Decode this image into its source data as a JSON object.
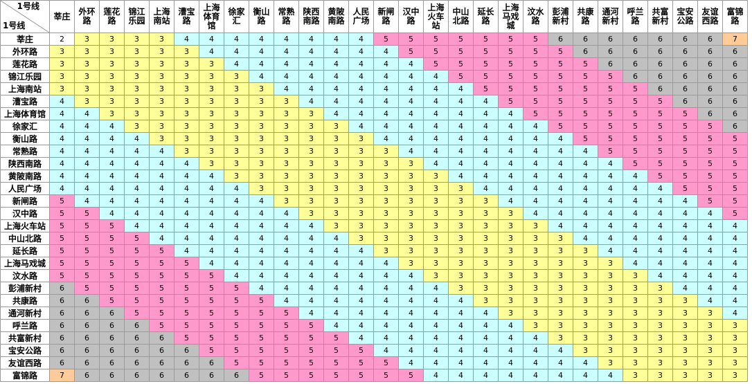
{
  "table": {
    "corner_top": "1号线",
    "corner_bottom": "1号线"
  },
  "colors": {
    "2": "#ffffff",
    "3": "#ffff99",
    "4": "#ccffff",
    "5": "#ff99cc",
    "6": "#c0c0c0",
    "7": "#ffcc99"
  },
  "chart_data": {
    "type": "table",
    "stations": [
      "莘庄",
      "外环路",
      "莲花路",
      "锦江乐园",
      "上海南站",
      "漕宝路",
      "上海体育馆",
      "徐家汇",
      "衡山路",
      "常熟路",
      "陕西南路",
      "黄陂南路",
      "人民广场",
      "新闸路",
      "汉中路",
      "上海火车站",
      "中山北路",
      "延长路",
      "上海马戏城",
      "汶水路",
      "彭浦新村",
      "共康路",
      "通河新村",
      "呼兰路",
      "共富新村",
      "宝安公路",
      "友谊西路",
      "富锦路"
    ],
    "matrix": [
      [
        2,
        3,
        3,
        3,
        3,
        4,
        4,
        4,
        4,
        4,
        4,
        4,
        4,
        5,
        5,
        5,
        5,
        5,
        5,
        5,
        6,
        6,
        6,
        6,
        6,
        6,
        6,
        7
      ],
      [
        3,
        3,
        3,
        3,
        3,
        3,
        4,
        4,
        4,
        4,
        4,
        4,
        4,
        4,
        5,
        5,
        5,
        5,
        5,
        5,
        5,
        6,
        6,
        6,
        6,
        6,
        6,
        6
      ],
      [
        3,
        3,
        3,
        3,
        3,
        3,
        3,
        4,
        4,
        4,
        4,
        4,
        4,
        4,
        4,
        5,
        5,
        5,
        5,
        5,
        5,
        5,
        6,
        6,
        6,
        6,
        6,
        6
      ],
      [
        3,
        3,
        3,
        3,
        3,
        3,
        3,
        3,
        4,
        4,
        4,
        4,
        4,
        4,
        4,
        4,
        5,
        5,
        5,
        5,
        5,
        5,
        5,
        6,
        6,
        6,
        6,
        6
      ],
      [
        3,
        3,
        3,
        3,
        3,
        3,
        3,
        3,
        3,
        4,
        4,
        4,
        4,
        4,
        4,
        4,
        4,
        5,
        5,
        5,
        5,
        5,
        5,
        5,
        6,
        6,
        6,
        6
      ],
      [
        4,
        3,
        3,
        3,
        3,
        3,
        3,
        3,
        3,
        3,
        4,
        4,
        4,
        4,
        4,
        4,
        4,
        4,
        5,
        5,
        5,
        5,
        5,
        5,
        5,
        6,
        6,
        6
      ],
      [
        4,
        4,
        3,
        3,
        3,
        3,
        3,
        3,
        3,
        3,
        3,
        4,
        4,
        4,
        4,
        4,
        4,
        4,
        4,
        5,
        5,
        5,
        5,
        5,
        5,
        5,
        6,
        6
      ],
      [
        4,
        4,
        4,
        3,
        3,
        3,
        3,
        3,
        3,
        3,
        3,
        3,
        4,
        4,
        4,
        4,
        4,
        4,
        4,
        4,
        5,
        5,
        5,
        5,
        5,
        5,
        5,
        6
      ],
      [
        4,
        4,
        4,
        4,
        3,
        3,
        3,
        3,
        3,
        3,
        3,
        3,
        3,
        4,
        4,
        4,
        4,
        4,
        4,
        4,
        4,
        5,
        5,
        5,
        5,
        5,
        5,
        5
      ],
      [
        4,
        4,
        4,
        4,
        4,
        3,
        3,
        3,
        3,
        3,
        3,
        3,
        3,
        3,
        4,
        4,
        4,
        4,
        4,
        4,
        4,
        4,
        5,
        5,
        5,
        5,
        5,
        5
      ],
      [
        4,
        4,
        4,
        4,
        4,
        4,
        3,
        3,
        3,
        3,
        3,
        3,
        3,
        3,
        3,
        4,
        4,
        4,
        4,
        4,
        4,
        4,
        4,
        5,
        5,
        5,
        5,
        5
      ],
      [
        4,
        4,
        4,
        4,
        4,
        4,
        4,
        3,
        3,
        3,
        3,
        3,
        3,
        3,
        3,
        3,
        4,
        4,
        4,
        4,
        4,
        4,
        4,
        4,
        5,
        5,
        5,
        5
      ],
      [
        4,
        4,
        4,
        4,
        4,
        4,
        4,
        4,
        3,
        3,
        3,
        3,
        3,
        3,
        3,
        3,
        3,
        4,
        4,
        4,
        4,
        4,
        4,
        4,
        4,
        5,
        5,
        5
      ],
      [
        5,
        4,
        4,
        4,
        4,
        4,
        4,
        4,
        4,
        3,
        3,
        3,
        3,
        3,
        3,
        3,
        3,
        3,
        4,
        4,
        4,
        4,
        4,
        4,
        4,
        4,
        5,
        5
      ],
      [
        5,
        5,
        4,
        4,
        4,
        4,
        4,
        4,
        4,
        4,
        3,
        3,
        3,
        3,
        3,
        3,
        3,
        3,
        3,
        4,
        4,
        4,
        4,
        4,
        4,
        4,
        4,
        5
      ],
      [
        5,
        5,
        5,
        4,
        4,
        4,
        4,
        4,
        4,
        4,
        4,
        3,
        3,
        3,
        3,
        3,
        3,
        3,
        3,
        3,
        4,
        4,
        4,
        4,
        4,
        4,
        4,
        4
      ],
      [
        5,
        5,
        5,
        5,
        4,
        4,
        4,
        4,
        4,
        4,
        4,
        4,
        3,
        3,
        3,
        3,
        3,
        3,
        3,
        3,
        3,
        4,
        4,
        4,
        4,
        4,
        4,
        4
      ],
      [
        5,
        5,
        5,
        5,
        5,
        4,
        4,
        4,
        4,
        4,
        4,
        4,
        4,
        3,
        3,
        3,
        3,
        3,
        3,
        3,
        3,
        3,
        4,
        4,
        4,
        4,
        4,
        4
      ],
      [
        5,
        5,
        5,
        5,
        5,
        5,
        4,
        4,
        4,
        4,
        4,
        4,
        4,
        4,
        3,
        3,
        3,
        3,
        3,
        3,
        3,
        3,
        3,
        4,
        4,
        4,
        4,
        4
      ],
      [
        5,
        5,
        5,
        5,
        5,
        5,
        5,
        4,
        4,
        4,
        4,
        4,
        4,
        4,
        4,
        3,
        3,
        3,
        3,
        3,
        3,
        3,
        3,
        3,
        4,
        4,
        4,
        4
      ],
      [
        6,
        5,
        5,
        5,
        5,
        5,
        5,
        5,
        4,
        4,
        4,
        4,
        4,
        4,
        4,
        4,
        3,
        3,
        3,
        3,
        3,
        3,
        3,
        3,
        3,
        4,
        4,
        4
      ],
      [
        6,
        6,
        5,
        5,
        5,
        5,
        5,
        5,
        5,
        4,
        4,
        4,
        4,
        4,
        4,
        4,
        4,
        3,
        3,
        3,
        3,
        3,
        3,
        3,
        3,
        3,
        4,
        4
      ],
      [
        6,
        6,
        6,
        5,
        5,
        5,
        5,
        5,
        5,
        5,
        4,
        4,
        4,
        4,
        4,
        4,
        4,
        4,
        3,
        3,
        3,
        3,
        3,
        3,
        3,
        3,
        3,
        4
      ],
      [
        6,
        6,
        6,
        6,
        5,
        5,
        5,
        5,
        5,
        5,
        5,
        4,
        4,
        4,
        4,
        4,
        4,
        4,
        4,
        3,
        3,
        3,
        3,
        3,
        3,
        3,
        3,
        3
      ],
      [
        6,
        6,
        6,
        6,
        6,
        5,
        5,
        5,
        5,
        5,
        5,
        5,
        4,
        4,
        4,
        4,
        4,
        4,
        4,
        4,
        3,
        3,
        3,
        3,
        3,
        3,
        3,
        3
      ],
      [
        6,
        6,
        6,
        6,
        6,
        6,
        5,
        5,
        5,
        5,
        5,
        5,
        5,
        4,
        4,
        4,
        4,
        4,
        4,
        4,
        4,
        3,
        3,
        3,
        3,
        3,
        3,
        3
      ],
      [
        6,
        6,
        6,
        6,
        6,
        6,
        6,
        5,
        5,
        5,
        5,
        5,
        5,
        5,
        4,
        4,
        4,
        4,
        4,
        4,
        4,
        4,
        3,
        3,
        3,
        3,
        3,
        3
      ],
      [
        7,
        6,
        6,
        6,
        6,
        6,
        6,
        6,
        5,
        5,
        5,
        5,
        5,
        5,
        5,
        4,
        4,
        4,
        4,
        4,
        4,
        4,
        4,
        3,
        3,
        3,
        3,
        3
      ]
    ]
  }
}
